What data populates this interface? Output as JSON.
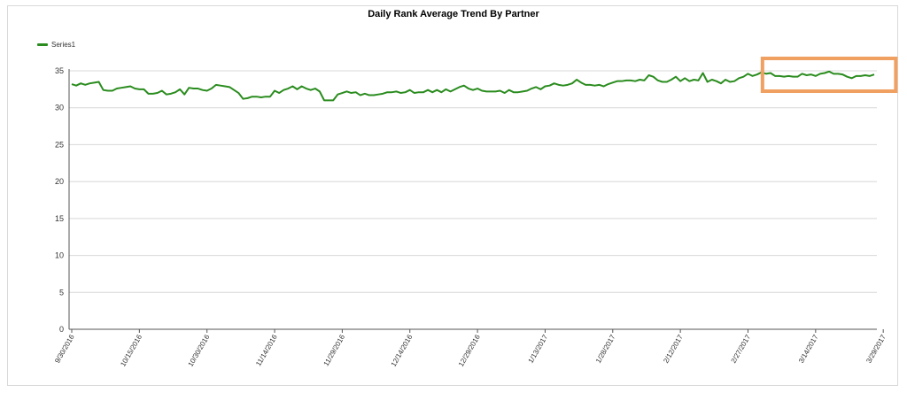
{
  "chart_data": {
    "type": "line",
    "title": "Daily Rank Average Trend By Partner",
    "xlabel": "",
    "ylabel": "",
    "ylim": [
      0,
      35
    ],
    "yticks": [
      0,
      5,
      10,
      15,
      20,
      25,
      30,
      35
    ],
    "xtick_labels": [
      "9/30/2016",
      "10/15/2016",
      "10/30/2016",
      "11/14/2016",
      "11/29/2016",
      "12/14/2016",
      "12/29/2016",
      "1/13/2017",
      "1/28/2017",
      "2/12/2017",
      "2/27/2017",
      "3/14/2017",
      "3/29/2017"
    ],
    "grid": true,
    "legend": {
      "position": "top-left"
    },
    "highlight": {
      "from": "3/3/2017",
      "to": "3/31/2017",
      "color": "#f0a060"
    },
    "series": [
      {
        "name": "Series1",
        "color": "#2a8c1e",
        "x_start": "9/30/2016",
        "x_step_days": 1,
        "values": [
          33.2,
          33.0,
          33.3,
          33.1,
          33.3,
          33.4,
          33.5,
          32.4,
          32.3,
          32.3,
          32.6,
          32.7,
          32.8,
          32.9,
          32.6,
          32.5,
          32.5,
          31.9,
          31.9,
          32.0,
          32.3,
          31.8,
          31.9,
          32.1,
          32.5,
          31.8,
          32.7,
          32.6,
          32.6,
          32.4,
          32.3,
          32.6,
          33.1,
          33.0,
          32.9,
          32.8,
          32.4,
          32.0,
          31.2,
          31.3,
          31.5,
          31.5,
          31.4,
          31.5,
          31.5,
          32.3,
          32.0,
          32.4,
          32.6,
          32.9,
          32.5,
          32.9,
          32.6,
          32.4,
          32.6,
          32.2,
          31.0,
          31.0,
          31.0,
          31.8,
          32.0,
          32.2,
          32.0,
          32.1,
          31.7,
          31.9,
          31.7,
          31.7,
          31.8,
          31.9,
          32.1,
          32.1,
          32.2,
          32.0,
          32.1,
          32.4,
          32.0,
          32.1,
          32.1,
          32.4,
          32.1,
          32.4,
          32.1,
          32.5,
          32.2,
          32.5,
          32.8,
          33.0,
          32.6,
          32.4,
          32.6,
          32.3,
          32.2,
          32.2,
          32.2,
          32.3,
          32.0,
          32.4,
          32.1,
          32.1,
          32.2,
          32.3,
          32.6,
          32.8,
          32.5,
          32.9,
          33.0,
          33.3,
          33.1,
          33.0,
          33.1,
          33.3,
          33.8,
          33.4,
          33.1,
          33.1,
          33.0,
          33.1,
          32.9,
          33.2,
          33.4,
          33.6,
          33.6,
          33.7,
          33.7,
          33.6,
          33.8,
          33.7,
          34.4,
          34.2,
          33.7,
          33.5,
          33.5,
          33.8,
          34.2,
          33.6,
          34.0,
          33.6,
          33.8,
          33.7,
          34.7,
          33.5,
          33.8,
          33.6,
          33.3,
          33.8,
          33.5,
          33.6,
          34.0,
          34.2,
          34.6,
          34.3,
          34.5,
          34.8,
          34.6,
          34.7,
          34.3,
          34.3,
          34.2,
          34.3,
          34.2,
          34.2,
          34.6,
          34.4,
          34.5,
          34.3,
          34.6,
          34.7,
          34.9,
          34.6,
          34.6,
          34.5,
          34.2,
          34.0,
          34.3,
          34.3,
          34.4,
          34.3,
          34.5
        ]
      }
    ]
  }
}
